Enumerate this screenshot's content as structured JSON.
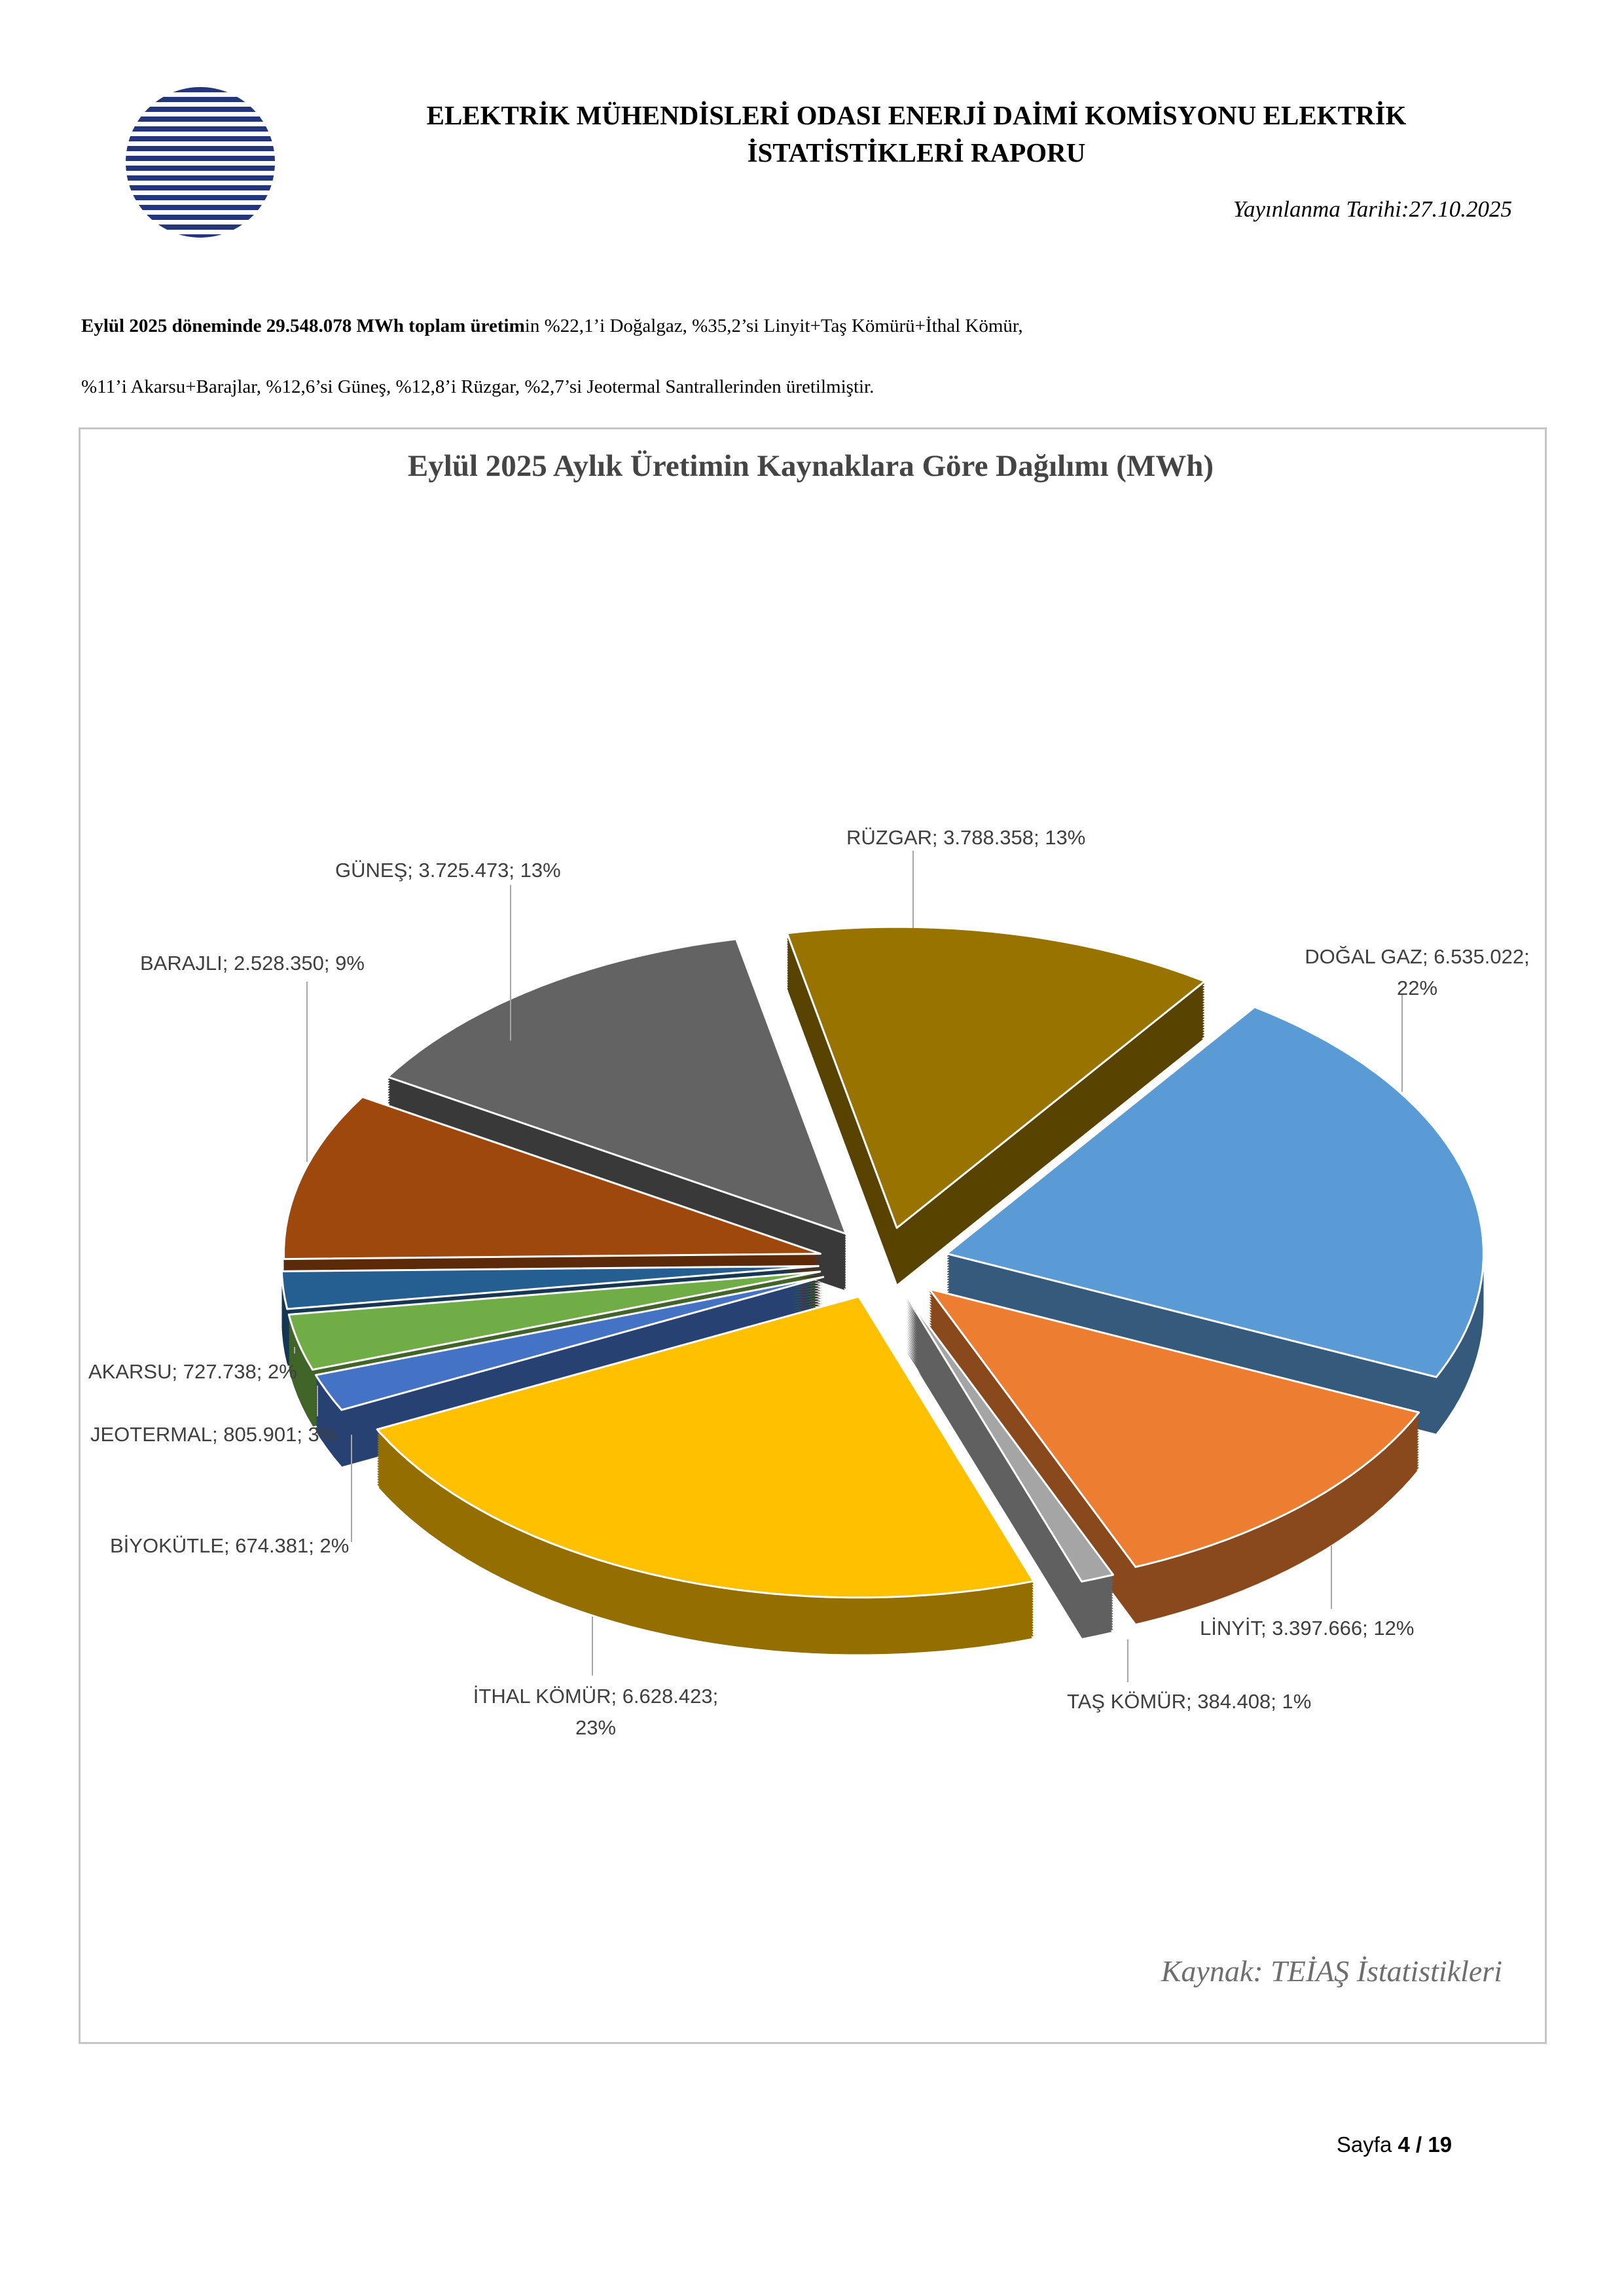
{
  "page": {
    "header": {
      "logo": "emo-logo",
      "title": "ELEKTRİK MÜHENDİSLERİ ODASI ENERJİ DAİMİ KOMİSYONU ELEKTRİK İSTATİSTİKLERİ RAPORU",
      "publish_date": "Yayınlanma Tarihi:27.10.2025"
    },
    "summary": {
      "line1_bold": "Eylül 2025 döneminde 29.548.078 MWh toplam üretim",
      "line1_rest": "in %22,1’i Doğalgaz,  %35,2’si Linyit+Taş Kömürü+İthal Kömür,",
      "line2": "%11’i  Akarsu+Barajlar, %12,6’si Güneş, %12,8’i Rüzgar, %2,7’si Jeotermal Santrallerinden üretilmiştir."
    },
    "footer": {
      "label": "Sayfa",
      "value": "4 / 19"
    }
  },
  "chart_data": {
    "type": "pie",
    "style": "3d-exploded",
    "title": "Eylül 2025 Aylık Üretimin Kaynaklara Göre Dağılımı (MWh)",
    "source": "Kaynak: TEİAŞ İstatistikleri",
    "unit": "MWh",
    "total_value": 29548078,
    "total_display": "29.548.078",
    "start_angle_deg": 35,
    "legend_position": "none",
    "slices": [
      {
        "label": "DOĞAL GAZ",
        "value": 6535022,
        "value_display": "6.535.022",
        "pct": 22,
        "color": "#5B9BD5",
        "display": "DOĞAL GAZ; 6.535.022; 22%"
      },
      {
        "label": "LİNYİT",
        "value": 3397666,
        "value_display": "3.397.666",
        "pct": 12,
        "color": "#ED7D31",
        "display": "LİNYİT; 3.397.666; 12%"
      },
      {
        "label": "TAŞ KÖMÜR",
        "value": 384408,
        "value_display": "384.408",
        "pct": 1,
        "color": "#A5A5A5",
        "display": "TAŞ KÖMÜR; 384.408; 1%"
      },
      {
        "label": "İTHAL KÖMÜR",
        "value": 6628423,
        "value_display": "6.628.423",
        "pct": 23,
        "color": "#FFC000",
        "display": "İTHAL KÖMÜR; 6.628.423; 23%"
      },
      {
        "label": "BİYOKÜTLE",
        "value": 674381,
        "value_display": "674.381",
        "pct": 2,
        "color": "#4472C4",
        "display": "BİYOKÜTLE; 674.381; 2%"
      },
      {
        "label": "JEOTERMAL",
        "value": 805901,
        "value_display": "805.901",
        "pct": 3,
        "color": "#70AD47",
        "display": "JEOTERMAL; 805.901; 3%"
      },
      {
        "label": "AKARSU",
        "value": 727738,
        "value_display": "727.738",
        "pct": 2,
        "color": "#255E91",
        "display": "AKARSU; 727.738; 2%"
      },
      {
        "label": "BARAJLI",
        "value": 2528350,
        "value_display": "2.528.350",
        "pct": 9,
        "color": "#9E480E",
        "display": "BARAJLI; 2.528.350; 9%"
      },
      {
        "label": "GÜNEŞ",
        "value": 3725473,
        "value_display": "3.725.473",
        "pct": 13,
        "color": "#636363",
        "display": "GÜNEŞ; 3.725.473; 13%"
      },
      {
        "label": "RÜZGAR",
        "value": 3788358,
        "value_display": "3.788.358",
        "pct": 13,
        "color": "#997300",
        "display": "RÜZGAR; 3.788.358; 13%"
      }
    ]
  }
}
